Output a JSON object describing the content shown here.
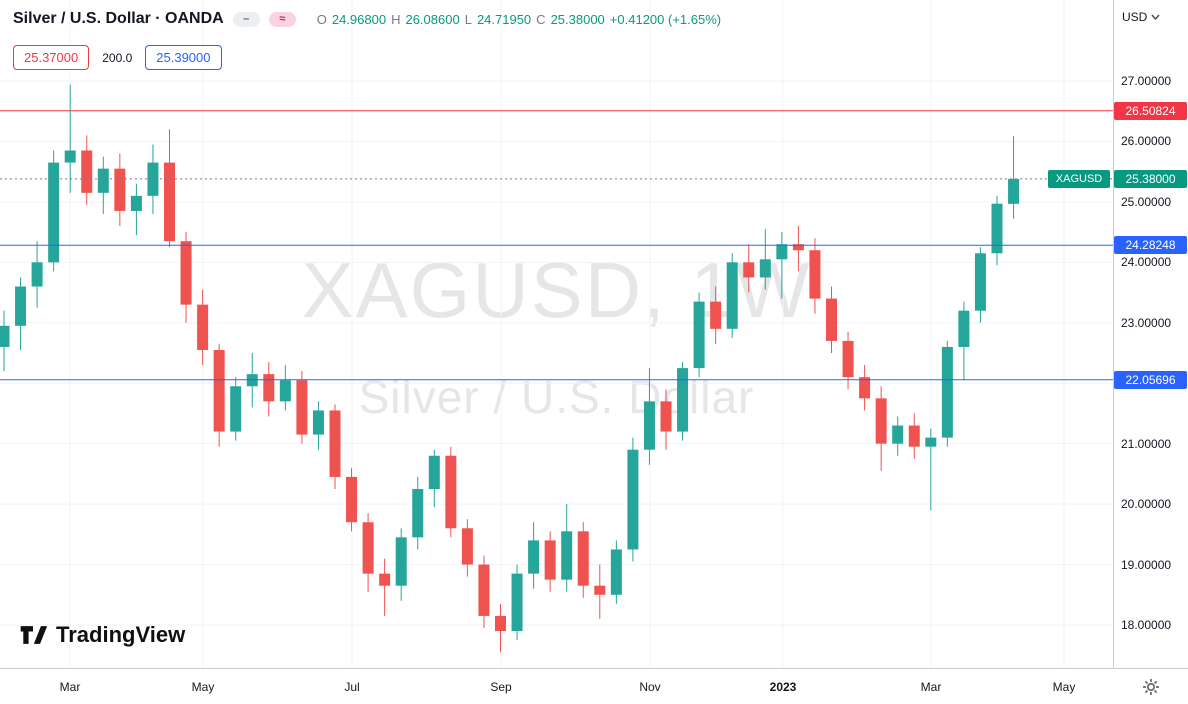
{
  "header": {
    "symbol_title": "Silver / U.S. Dollar · OANDA",
    "ohlc": {
      "o_label": "O",
      "o": "24.96800",
      "h_label": "H",
      "h": "26.08600",
      "l_label": "L",
      "l": "24.71950",
      "c_label": "C",
      "c": "25.38000",
      "change": "+0.41200 (+1.65%)"
    },
    "pills": [
      {
        "name": "dash-pill-icon",
        "glyph": "–"
      },
      {
        "name": "wave-pill-icon",
        "glyph": "≈"
      }
    ],
    "sell_price": "25.37000",
    "spread": "200.0",
    "buy_price": "25.39000"
  },
  "watermark": {
    "line1": "XAGUSD, 1W",
    "line2": "Silver / U.S. Dollar"
  },
  "logo_text": "TradingView",
  "price_axis": {
    "currency_label": "USD",
    "ticks": [
      "27.00000",
      "26.00000",
      "25.00000",
      "24.00000",
      "23.00000",
      "22.00000",
      "21.00000",
      "20.00000",
      "19.00000",
      "18.00000"
    ]
  },
  "time_axis": {
    "labels": [
      "Mar",
      "May",
      "Jul",
      "Sep",
      "Nov",
      "2023",
      "Mar",
      "May"
    ]
  },
  "levels": [
    {
      "name": "resistance-line",
      "value": 26.50824,
      "label": "26.50824",
      "color": "#f23645",
      "style": "solid"
    },
    {
      "name": "current-price-line",
      "value": 25.38,
      "label": "25.38000",
      "symbol_tag": "XAGUSD",
      "color": "#089981",
      "line_color": "#787b86",
      "style": "dotted"
    },
    {
      "name": "upper-support-line",
      "value": 24.28248,
      "label": "24.28248",
      "color": "#2962ff",
      "style": "solid"
    },
    {
      "name": "lower-support-line",
      "value": 22.05696,
      "label": "22.05696",
      "color": "#2962ff",
      "style": "solid"
    }
  ],
  "chart_data": {
    "type": "candlestick",
    "symbol": "XAGUSD",
    "timeframe": "1W",
    "title": "Silver / U.S. Dollar weekly candlesticks",
    "up_color": "#26a69a",
    "down_color": "#ef5350",
    "ylim": [
      17.5,
      27.3
    ],
    "columns": [
      "week_start",
      "open",
      "high",
      "low",
      "close"
    ],
    "candles": [
      [
        "2022-02-07",
        22.6,
        23.2,
        22.2,
        22.95
      ],
      [
        "2022-02-14",
        22.95,
        23.75,
        22.55,
        23.6
      ],
      [
        "2022-02-21",
        23.6,
        24.35,
        23.25,
        24.0
      ],
      [
        "2022-02-28",
        24.0,
        25.85,
        23.85,
        25.65
      ],
      [
        "2022-03-07",
        25.65,
        26.94,
        25.15,
        25.85
      ],
      [
        "2022-03-14",
        25.85,
        26.1,
        24.95,
        25.15
      ],
      [
        "2022-03-21",
        25.15,
        25.75,
        24.8,
        25.55
      ],
      [
        "2022-03-28",
        25.55,
        25.8,
        24.6,
        24.85
      ],
      [
        "2022-04-04",
        24.85,
        25.3,
        24.45,
        25.1
      ],
      [
        "2022-04-11",
        25.1,
        25.95,
        24.8,
        25.65
      ],
      [
        "2022-04-18",
        25.65,
        26.2,
        24.25,
        24.35
      ],
      [
        "2022-04-25",
        24.35,
        24.5,
        23.0,
        23.3
      ],
      [
        "2022-05-02",
        23.3,
        23.55,
        22.3,
        22.55
      ],
      [
        "2022-05-09",
        22.55,
        22.65,
        20.95,
        21.2
      ],
      [
        "2022-05-16",
        21.2,
        22.1,
        21.05,
        21.95
      ],
      [
        "2022-05-23",
        21.95,
        22.5,
        21.6,
        22.15
      ],
      [
        "2022-05-30",
        22.15,
        22.35,
        21.45,
        21.7
      ],
      [
        "2022-06-06",
        21.7,
        22.3,
        21.55,
        22.05
      ],
      [
        "2022-06-13",
        22.05,
        22.2,
        21.0,
        21.15
      ],
      [
        "2022-06-20",
        21.15,
        21.7,
        20.9,
        21.55
      ],
      [
        "2022-06-27",
        21.55,
        21.65,
        20.25,
        20.45
      ],
      [
        "2022-07-04",
        20.45,
        20.6,
        19.55,
        19.7
      ],
      [
        "2022-07-11",
        19.7,
        19.85,
        18.55,
        18.85
      ],
      [
        "2022-07-18",
        18.85,
        19.1,
        18.15,
        18.65
      ],
      [
        "2022-07-25",
        18.65,
        19.6,
        18.4,
        19.45
      ],
      [
        "2022-08-01",
        19.45,
        20.45,
        19.25,
        20.25
      ],
      [
        "2022-08-08",
        20.25,
        20.9,
        19.95,
        20.8
      ],
      [
        "2022-08-15",
        20.8,
        20.95,
        19.45,
        19.6
      ],
      [
        "2022-08-22",
        19.6,
        19.75,
        18.8,
        19.0
      ],
      [
        "2022-08-29",
        19.0,
        19.15,
        17.95,
        18.15
      ],
      [
        "2022-09-05",
        18.15,
        18.35,
        17.55,
        17.9
      ],
      [
        "2022-09-12",
        17.9,
        19.0,
        17.75,
        18.85
      ],
      [
        "2022-09-19",
        18.85,
        19.7,
        18.6,
        19.4
      ],
      [
        "2022-09-26",
        19.4,
        19.55,
        18.55,
        18.75
      ],
      [
        "2022-10-03",
        18.75,
        20.0,
        18.55,
        19.55
      ],
      [
        "2022-10-10",
        19.55,
        19.7,
        18.45,
        18.65
      ],
      [
        "2022-10-17",
        18.65,
        19.0,
        18.1,
        18.5
      ],
      [
        "2022-10-24",
        18.5,
        19.4,
        18.35,
        19.25
      ],
      [
        "2022-10-31",
        19.25,
        21.1,
        19.05,
        20.9
      ],
      [
        "2022-11-07",
        20.9,
        22.25,
        20.65,
        21.7
      ],
      [
        "2022-11-14",
        21.7,
        21.9,
        20.9,
        21.2
      ],
      [
        "2022-11-21",
        21.2,
        22.35,
        21.05,
        22.25
      ],
      [
        "2022-11-28",
        22.25,
        23.5,
        22.1,
        23.35
      ],
      [
        "2022-12-05",
        23.35,
        23.6,
        22.65,
        22.9
      ],
      [
        "2022-12-12",
        22.9,
        24.15,
        22.75,
        24.0
      ],
      [
        "2022-12-19",
        24.0,
        24.3,
        23.5,
        23.75
      ],
      [
        "2022-12-26",
        23.75,
        24.55,
        23.55,
        24.05
      ],
      [
        "2023-01-02",
        24.05,
        24.5,
        23.4,
        24.3
      ],
      [
        "2023-01-09",
        24.3,
        24.6,
        23.85,
        24.2
      ],
      [
        "2023-01-16",
        24.2,
        24.4,
        23.15,
        23.4
      ],
      [
        "2023-01-23",
        23.4,
        23.6,
        22.5,
        22.7
      ],
      [
        "2023-01-30",
        22.7,
        22.85,
        21.9,
        22.1
      ],
      [
        "2023-02-06",
        22.1,
        22.3,
        21.55,
        21.75
      ],
      [
        "2023-02-13",
        21.75,
        21.95,
        20.55,
        21.0
      ],
      [
        "2023-02-20",
        21.0,
        21.45,
        20.8,
        21.3
      ],
      [
        "2023-02-27",
        21.3,
        21.5,
        20.75,
        20.95
      ],
      [
        "2023-03-06",
        20.95,
        21.25,
        19.9,
        21.1
      ],
      [
        "2023-03-13",
        21.1,
        22.7,
        20.95,
        22.6
      ],
      [
        "2023-03-20",
        22.6,
        23.35,
        22.05,
        23.2
      ],
      [
        "2023-03-27",
        23.2,
        24.25,
        23.0,
        24.15
      ],
      [
        "2023-04-03",
        24.15,
        25.1,
        23.95,
        24.97
      ],
      [
        "2023-04-10",
        24.968,
        26.086,
        24.7195,
        25.38
      ]
    ]
  }
}
